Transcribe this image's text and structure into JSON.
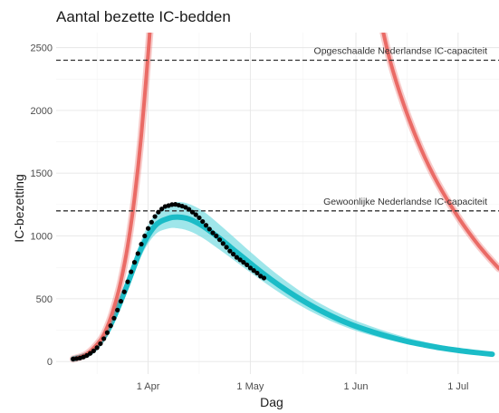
{
  "chart_data": {
    "type": "line",
    "title": "Aantal bezette IC-bedden",
    "xlabel": "Dag",
    "ylabel": "IC-bezetting",
    "x_axis": {
      "type": "date",
      "range": [
        "2020-03-05",
        "2020-07-13"
      ],
      "ticks": [
        {
          "date": "2020-04-01",
          "label": "1 Apr"
        },
        {
          "date": "2020-05-01",
          "label": "1 May"
        },
        {
          "date": "2020-06-01",
          "label": "1 Jun"
        },
        {
          "date": "2020-07-01",
          "label": "1 Jul"
        }
      ]
    },
    "y_axis": {
      "range": [
        -100,
        2620
      ],
      "ticks": [
        {
          "value": 0,
          "label": "0"
        },
        {
          "value": 500,
          "label": "500"
        },
        {
          "value": 1000,
          "label": "1000"
        },
        {
          "value": 1500,
          "label": "1500"
        },
        {
          "value": 2000,
          "label": "2000"
        },
        {
          "value": 2500,
          "label": "2500"
        }
      ]
    },
    "grid": true,
    "reference_lines": [
      {
        "value": 2400,
        "label": "Opgeschaalde Nederlandse IC-capaciteit"
      },
      {
        "value": 1200,
        "label": "Gewoonlijke Nederlandse IC-capaciteit"
      }
    ],
    "series": [
      {
        "kind": "observed-points",
        "color": "#000000",
        "points": [
          [
            "2020-03-10",
            20
          ],
          [
            "2020-03-11",
            23
          ],
          [
            "2020-03-12",
            28
          ],
          [
            "2020-03-13",
            36
          ],
          [
            "2020-03-14",
            48
          ],
          [
            "2020-03-15",
            65
          ],
          [
            "2020-03-16",
            85
          ],
          [
            "2020-03-17",
            110
          ],
          [
            "2020-03-18",
            142
          ],
          [
            "2020-03-19",
            182
          ],
          [
            "2020-03-20",
            230
          ],
          [
            "2020-03-21",
            285
          ],
          [
            "2020-03-22",
            345
          ],
          [
            "2020-03-23",
            410
          ],
          [
            "2020-03-24",
            480
          ],
          [
            "2020-03-25",
            555
          ],
          [
            "2020-03-26",
            635
          ],
          [
            "2020-03-27",
            715
          ],
          [
            "2020-03-28",
            790
          ],
          [
            "2020-03-29",
            860
          ],
          [
            "2020-03-30",
            935
          ],
          [
            "2020-03-31",
            1000
          ],
          [
            "2020-04-01",
            1060
          ],
          [
            "2020-04-02",
            1110
          ],
          [
            "2020-04-03",
            1155
          ],
          [
            "2020-04-04",
            1190
          ],
          [
            "2020-04-05",
            1215
          ],
          [
            "2020-04-06",
            1235
          ],
          [
            "2020-04-07",
            1242
          ],
          [
            "2020-04-08",
            1250
          ],
          [
            "2020-04-09",
            1252
          ],
          [
            "2020-04-10",
            1245
          ],
          [
            "2020-04-11",
            1238
          ],
          [
            "2020-04-12",
            1228
          ],
          [
            "2020-04-13",
            1212
          ],
          [
            "2020-04-14",
            1190
          ],
          [
            "2020-04-15",
            1170
          ],
          [
            "2020-04-16",
            1145
          ],
          [
            "2020-04-17",
            1115
          ],
          [
            "2020-04-18",
            1085
          ],
          [
            "2020-04-19",
            1055
          ],
          [
            "2020-04-20",
            1025
          ],
          [
            "2020-04-21",
            1000
          ],
          [
            "2020-04-22",
            970
          ],
          [
            "2020-04-23",
            940
          ],
          [
            "2020-04-24",
            910
          ],
          [
            "2020-04-25",
            880
          ],
          [
            "2020-04-26",
            855
          ],
          [
            "2020-04-27",
            830
          ],
          [
            "2020-04-28",
            810
          ],
          [
            "2020-04-29",
            790
          ],
          [
            "2020-04-30",
            770
          ],
          [
            "2020-05-01",
            745
          ],
          [
            "2020-05-02",
            725
          ],
          [
            "2020-05-03",
            705
          ],
          [
            "2020-05-04",
            680
          ],
          [
            "2020-05-05",
            665
          ]
        ]
      },
      {
        "kind": "model-fit",
        "color": "#1bbcc7",
        "band_color": "#7fdde3",
        "points": [
          [
            "2020-03-10",
            20,
            15,
            25
          ],
          [
            "2020-03-15",
            70,
            60,
            80
          ],
          [
            "2020-03-20",
            240,
            210,
            270
          ],
          [
            "2020-03-25",
            550,
            510,
            600
          ],
          [
            "2020-03-30",
            900,
            840,
            970
          ],
          [
            "2020-04-03",
            1080,
            1010,
            1170
          ],
          [
            "2020-04-07",
            1140,
            1060,
            1250
          ],
          [
            "2020-04-10",
            1150,
            1060,
            1270
          ],
          [
            "2020-04-13",
            1135,
            1040,
            1255
          ],
          [
            "2020-04-17",
            1080,
            985,
            1200
          ],
          [
            "2020-04-22",
            980,
            890,
            1090
          ],
          [
            "2020-04-27",
            870,
            790,
            970
          ],
          [
            "2020-05-02",
            760,
            690,
            850
          ],
          [
            "2020-05-07",
            655,
            595,
            735
          ],
          [
            "2020-05-12",
            560,
            505,
            630
          ],
          [
            "2020-05-17",
            475,
            425,
            535
          ],
          [
            "2020-05-22",
            400,
            355,
            455
          ],
          [
            "2020-05-27",
            335,
            295,
            385
          ],
          [
            "2020-06-01",
            280,
            245,
            325
          ],
          [
            "2020-06-06",
            235,
            205,
            275
          ],
          [
            "2020-06-11",
            195,
            170,
            230
          ],
          [
            "2020-06-16",
            160,
            140,
            190
          ],
          [
            "2020-06-21",
            132,
            115,
            158
          ],
          [
            "2020-06-26",
            108,
            93,
            130
          ],
          [
            "2020-07-01",
            88,
            76,
            107
          ],
          [
            "2020-07-06",
            72,
            62,
            88
          ],
          [
            "2020-07-11",
            58,
            50,
            72
          ]
        ]
      },
      {
        "kind": "scenario-rise",
        "color": "#ea6b66",
        "points": [
          [
            "2020-03-10",
            20
          ],
          [
            "2020-03-14",
            60
          ],
          [
            "2020-03-18",
            170
          ],
          [
            "2020-03-20",
            275
          ],
          [
            "2020-03-22",
            430
          ],
          [
            "2020-03-24",
            640
          ],
          [
            "2020-03-26",
            920
          ],
          [
            "2020-03-28",
            1300
          ],
          [
            "2020-03-30",
            1800
          ],
          [
            "2020-04-01",
            2450
          ],
          [
            "2020-04-02",
            2800
          ]
        ]
      },
      {
        "kind": "scenario-decline",
        "color": "#ea6b66",
        "points": [
          [
            "2020-06-08",
            2750
          ],
          [
            "2020-06-11",
            2400
          ],
          [
            "2020-06-15",
            2050
          ],
          [
            "2020-06-20",
            1700
          ],
          [
            "2020-06-25",
            1420
          ],
          [
            "2020-07-01",
            1150
          ],
          [
            "2020-07-06",
            960
          ],
          [
            "2020-07-09",
            860
          ],
          [
            "2020-07-13",
            740
          ]
        ]
      }
    ]
  }
}
